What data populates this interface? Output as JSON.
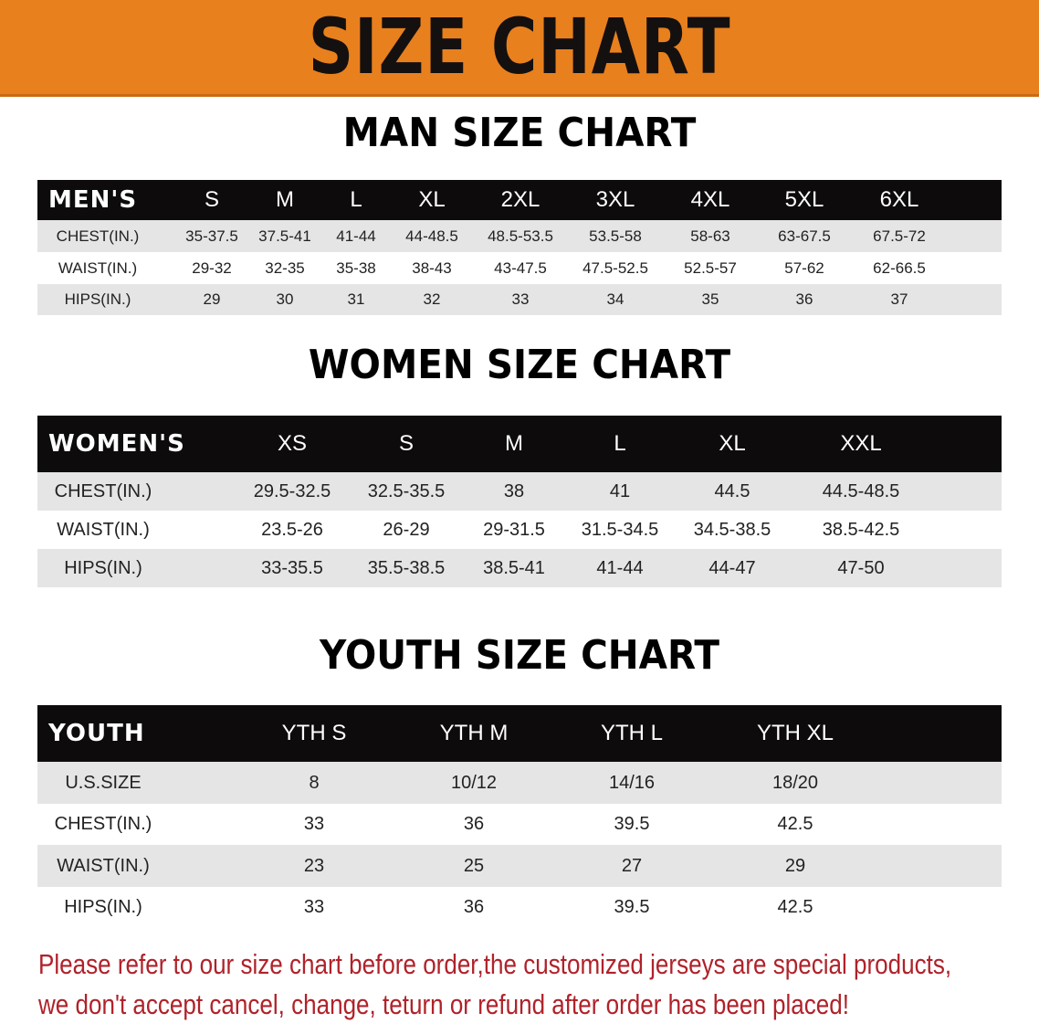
{
  "banner": {
    "title": "SIZE CHART",
    "color": "#e8801e"
  },
  "men": {
    "title": "MAN SIZE CHART",
    "header": [
      "MEN'S",
      "S",
      "M",
      "L",
      "XL",
      "2XL",
      "3XL",
      "4XL",
      "5XL",
      "6XL"
    ],
    "rows": [
      [
        "CHEST(IN.)",
        "35-37.5",
        "37.5-41",
        "41-44",
        "44-48.5",
        "48.5-53.5",
        "53.5-58",
        "58-63",
        "63-67.5",
        "67.5-72"
      ],
      [
        "WAIST(IN.)",
        "29-32",
        "32-35",
        "35-38",
        "38-43",
        "43-47.5",
        "47.5-52.5",
        "52.5-57",
        "57-62",
        "62-66.5"
      ],
      [
        "HIPS(IN.)",
        "29",
        "30",
        "31",
        "32",
        "33",
        "34",
        "35",
        "36",
        "37"
      ]
    ]
  },
  "women": {
    "title": "WOMEN SIZE CHART",
    "header": [
      "WOMEN'S",
      "XS",
      "S",
      "M",
      "L",
      "XL",
      "XXL"
    ],
    "rows": [
      [
        "CHEST(IN.)",
        "29.5-32.5",
        "32.5-35.5",
        "38",
        "41",
        "44.5",
        "44.5-48.5"
      ],
      [
        "WAIST(IN.)",
        "23.5-26",
        "26-29",
        "29-31.5",
        "31.5-34.5",
        "34.5-38.5",
        "38.5-42.5"
      ],
      [
        "HIPS(IN.)",
        "33-35.5",
        "35.5-38.5",
        "38.5-41",
        "41-44",
        "44-47",
        "47-50"
      ]
    ]
  },
  "youth": {
    "title": "YOUTH SIZE CHART",
    "header": [
      "YOUTH",
      "YTH S",
      "YTH M",
      "YTH L",
      "YTH XL"
    ],
    "rows": [
      [
        "U.S.SIZE",
        "8",
        "10/12",
        "14/16",
        "18/20"
      ],
      [
        "CHEST(IN.)",
        "33",
        "36",
        "39.5",
        "42.5"
      ],
      [
        "WAIST(IN.)",
        "23",
        "25",
        "27",
        "29"
      ],
      [
        "HIPS(IN.)",
        "33",
        "36",
        "39.5",
        "42.5"
      ]
    ]
  },
  "notice": {
    "line1": "Please refer to our size chart before order,the customized jerseys are special products,",
    "line2": "we don't accept cancel, change, teturn or refund after order has been placed!",
    "color": "#b0222a"
  }
}
